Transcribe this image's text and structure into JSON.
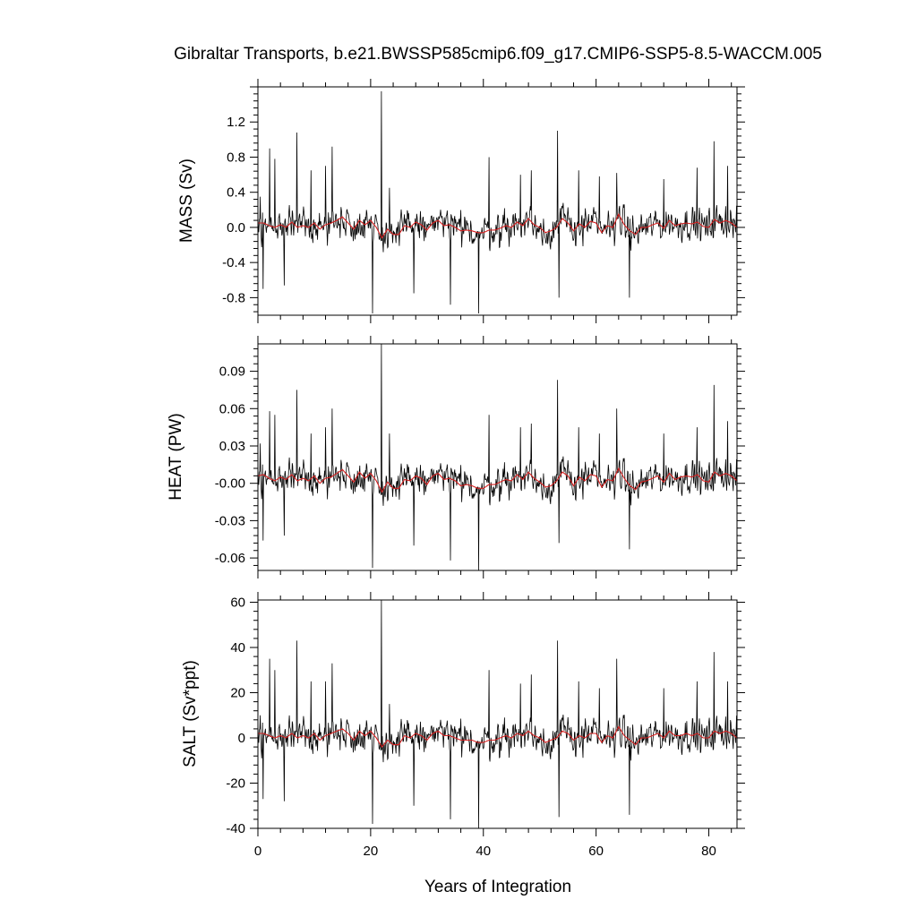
{
  "chart_data": [
    {
      "type": "line",
      "title": "Gibraltar Transports, b.e21.BWSSP585cmip6.f09_g17.CMIP6-SSP5-8.5-WACCM.005",
      "ylabel": "MASS (Sv)",
      "xlabel": "",
      "xlim": [
        0,
        85
      ],
      "ylim": [
        -1.0,
        1.6
      ],
      "yticks": [
        "1.2",
        "0.8",
        "0.4",
        "0.0",
        "-0.4",
        "-0.8"
      ],
      "ytick_values": [
        1.2,
        0.8,
        0.4,
        0.0,
        -0.4,
        -0.8
      ],
      "grid": false,
      "series": [
        {
          "role": "monthly",
          "color": "#000000",
          "spikes": [
            [
              0.4,
              0.35
            ],
            [
              0.9,
              -0.7
            ],
            [
              2.1,
              0.9
            ],
            [
              3.0,
              0.78
            ],
            [
              4.7,
              -0.66
            ],
            [
              6.9,
              1.08
            ],
            [
              9.4,
              0.65
            ],
            [
              12.0,
              0.7
            ],
            [
              13.2,
              0.92
            ],
            [
              20.3,
              -0.98
            ],
            [
              21.9,
              1.55
            ],
            [
              23.3,
              0.45
            ],
            [
              27.7,
              -0.75
            ],
            [
              34.2,
              -0.88
            ],
            [
              39.2,
              -0.98
            ],
            [
              41.0,
              0.8
            ],
            [
              46.6,
              0.6
            ],
            [
              48.5,
              0.65
            ],
            [
              53.2,
              1.1
            ],
            [
              53.4,
              -0.8
            ],
            [
              56.9,
              0.65
            ],
            [
              60.6,
              0.58
            ],
            [
              63.7,
              0.62
            ],
            [
              65.9,
              -0.8
            ],
            [
              72.0,
              0.55
            ],
            [
              77.9,
              0.68
            ],
            [
              80.9,
              0.98
            ],
            [
              83.3,
              0.7
            ],
            [
              85.0,
              -0.42
            ]
          ],
          "noise_amplitude": 0.2
        },
        {
          "role": "smoothed",
          "color": "#d62020",
          "values": [
            0.05,
            0.05,
            0.02,
            0.0,
            0.03,
            0.0,
            0.06,
            0.0,
            0.02,
            0.0,
            0.05,
            -0.02,
            0.03,
            0.05,
            0.08,
            0.12,
            0.05,
            -0.02,
            0.08,
            0.03,
            0.08,
            0.0,
            -0.12,
            -0.02,
            -0.08,
            -0.08,
            0.02,
            0.0,
            0.06,
            0.03,
            -0.03,
            0.05,
            0.08,
            0.02,
            0.03,
            0.0,
            -0.04,
            -0.03,
            -0.04,
            -0.06,
            -0.06,
            -0.03,
            -0.03,
            -0.01,
            0.02,
            0.0,
            0.06,
            0.02,
            0.1,
            0.03,
            0.0,
            -0.06,
            -0.04,
            0.0,
            0.1,
            0.05,
            -0.04,
            0.04,
            0.0,
            0.07,
            0.05,
            -0.06,
            0.02,
            0.0,
            0.15,
            0.03,
            -0.04,
            -0.08,
            0.0,
            0.0,
            0.03,
            0.05,
            -0.01,
            0.08,
            0.02,
            0.04,
            0.05,
            0.04,
            0.06,
            0.01,
            0.0,
            0.09,
            0.05,
            0.08,
            0.05,
            0.0
          ]
        }
      ]
    },
    {
      "type": "line",
      "ylabel": "HEAT (PW)",
      "xlabel": "",
      "xlim": [
        0,
        85
      ],
      "ylim": [
        -0.07,
        0.112
      ],
      "yticks": [
        "0.09",
        "0.06",
        "0.03",
        "-0.00",
        "-0.03",
        "-0.06"
      ],
      "ytick_values": [
        0.09,
        0.06,
        0.03,
        0.0,
        -0.03,
        -0.06
      ],
      "grid": false,
      "series": [
        {
          "role": "monthly",
          "color": "#000000",
          "spikes": [
            [
              0.4,
              0.032
            ],
            [
              0.9,
              -0.046
            ],
            [
              2.1,
              0.058
            ],
            [
              3.0,
              0.055
            ],
            [
              4.7,
              -0.042
            ],
            [
              6.9,
              0.075
            ],
            [
              9.4,
              0.04
            ],
            [
              12.0,
              0.045
            ],
            [
              13.2,
              0.06
            ],
            [
              20.3,
              -0.068
            ],
            [
              21.9,
              0.112
            ],
            [
              23.3,
              0.04
            ],
            [
              27.7,
              -0.05
            ],
            [
              34.2,
              -0.062
            ],
            [
              39.2,
              -0.07
            ],
            [
              41.0,
              0.055
            ],
            [
              46.6,
              0.045
            ],
            [
              48.5,
              0.048
            ],
            [
              53.2,
              0.083
            ],
            [
              53.4,
              -0.048
            ],
            [
              56.9,
              0.045
            ],
            [
              60.6,
              0.04
            ],
            [
              63.7,
              0.06
            ],
            [
              65.9,
              -0.053
            ],
            [
              72.0,
              0.04
            ],
            [
              77.9,
              0.045
            ],
            [
              80.9,
              0.079
            ],
            [
              83.3,
              0.05
            ],
            [
              85.0,
              -0.03
            ]
          ],
          "noise_amplitude": 0.014
        },
        {
          "role": "smoothed",
          "color": "#d62020",
          "values": [
            0.006,
            0.007,
            0.004,
            0.002,
            0.005,
            0.003,
            0.007,
            0.002,
            0.004,
            0.002,
            0.006,
            0.0,
            0.004,
            0.005,
            0.008,
            0.011,
            0.006,
            0.001,
            0.009,
            0.004,
            0.008,
            0.002,
            -0.007,
            0.001,
            -0.004,
            -0.004,
            0.003,
            0.002,
            0.006,
            0.004,
            -0.001,
            0.006,
            0.008,
            0.003,
            0.004,
            0.002,
            -0.002,
            -0.001,
            -0.002,
            -0.004,
            -0.004,
            -0.001,
            -0.001,
            0.001,
            0.003,
            0.002,
            0.007,
            0.003,
            0.009,
            0.004,
            0.001,
            -0.003,
            -0.002,
            0.002,
            0.009,
            0.006,
            -0.002,
            0.005,
            0.002,
            0.007,
            0.006,
            -0.003,
            0.003,
            0.002,
            0.012,
            0.004,
            -0.002,
            -0.005,
            0.001,
            0.002,
            0.004,
            0.006,
            0.001,
            0.008,
            0.003,
            0.005,
            0.006,
            0.005,
            0.007,
            0.002,
            0.001,
            0.009,
            0.006,
            0.008,
            0.006,
            0.002
          ]
        }
      ]
    },
    {
      "type": "line",
      "ylabel": "SALT (Sv*ppt)",
      "xlabel": "Years of Integration",
      "xlim": [
        0,
        85
      ],
      "ylim": [
        -40,
        61
      ],
      "xticks": [
        "0",
        "20",
        "40",
        "60",
        "80"
      ],
      "xtick_values": [
        0,
        20,
        40,
        60,
        80
      ],
      "yticks": [
        "60",
        "40",
        "20",
        "0",
        "-20",
        "-40"
      ],
      "ytick_values": [
        60,
        40,
        20,
        0,
        -20,
        -40
      ],
      "grid": false,
      "series": [
        {
          "role": "monthly",
          "color": "#000000",
          "spikes": [
            [
              0.4,
              10
            ],
            [
              0.9,
              -27
            ],
            [
              2.1,
              35
            ],
            [
              3.0,
              30
            ],
            [
              4.7,
              -28
            ],
            [
              6.9,
              43
            ],
            [
              9.4,
              25
            ],
            [
              12.0,
              25
            ],
            [
              13.2,
              33
            ],
            [
              20.3,
              -38
            ],
            [
              21.9,
              61
            ],
            [
              23.3,
              15
            ],
            [
              27.7,
              -30
            ],
            [
              34.2,
              -36
            ],
            [
              39.2,
              -40
            ],
            [
              41.0,
              30
            ],
            [
              46.6,
              24
            ],
            [
              48.5,
              28
            ],
            [
              53.2,
              43
            ],
            [
              53.4,
              -35
            ],
            [
              56.9,
              25
            ],
            [
              60.6,
              22
            ],
            [
              63.7,
              35
            ],
            [
              65.9,
              -34
            ],
            [
              72.0,
              22
            ],
            [
              77.9,
              25
            ],
            [
              80.9,
              38
            ],
            [
              83.3,
              25
            ],
            [
              85.0,
              -17
            ]
          ],
          "noise_amplitude": 8
        },
        {
          "role": "smoothed",
          "color": "#d62020",
          "values": [
            2,
            2,
            1,
            0,
            1,
            0,
            2,
            0,
            1,
            0,
            2,
            -1,
            1,
            2,
            3,
            4,
            2,
            -1,
            3,
            1,
            3,
            0,
            -4,
            -1,
            -3,
            -3,
            1,
            0,
            2,
            1,
            -1,
            2,
            3,
            1,
            1,
            0,
            -1,
            -1,
            -1,
            -2,
            -2,
            -1,
            -1,
            0,
            1,
            0,
            2,
            1,
            3,
            1,
            0,
            -2,
            -1,
            0,
            3,
            2,
            -1,
            1,
            0,
            2,
            2,
            -2,
            1,
            0,
            5,
            1,
            -1,
            -3,
            0,
            0,
            1,
            2,
            0,
            3,
            1,
            1,
            2,
            1,
            2,
            0,
            0,
            3,
            2,
            3,
            2,
            0
          ]
        }
      ]
    }
  ]
}
